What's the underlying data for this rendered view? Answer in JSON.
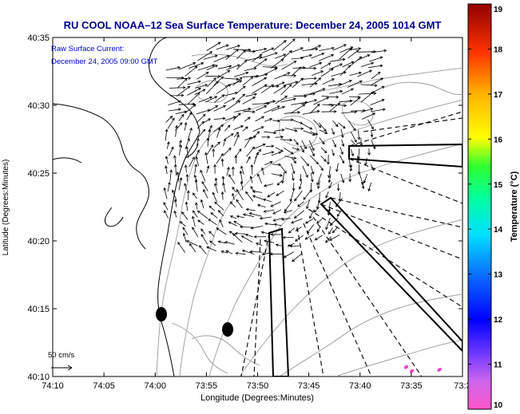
{
  "chart_data": {
    "type": "map",
    "title": "RU COOL   NOAA–12  Sea Surface Temperature:  December 24, 2005 1014 GMT",
    "annotation": {
      "line1": "Raw Surface Current:",
      "line2": "December 24, 2005 09:00 GMT"
    },
    "xlabel": "Longitude (Degrees:Minutes)",
    "ylabel": "Latitude (Degrees:Minutes)",
    "x_ticks": [
      "74:10",
      "74:05",
      "74:00",
      "73:55",
      "73:50",
      "73:45",
      "73:40",
      "73:35",
      "73:3"
    ],
    "y_ticks": [
      "40:35",
      "40:30",
      "40:25",
      "40:20",
      "40:15",
      "40:10"
    ],
    "xlim_deg": [
      -74.1667,
      -73.5
    ],
    "ylim_deg": [
      40.1667,
      40.5833
    ],
    "scale_label": "50 cm/s",
    "colorbar": {
      "label": "Temperature (°C)",
      "range": [
        10,
        19
      ],
      "ticks": [
        "19",
        "18",
        "17",
        "16",
        "15",
        "14",
        "13",
        "12",
        "11",
        "10"
      ]
    },
    "sst_points": [
      {
        "lon": -73.5917,
        "lat": 40.1783,
        "temp": 10.2
      },
      {
        "lon": -73.5825,
        "lat": 40.1733,
        "temp": 10.2
      },
      {
        "lon": -73.5375,
        "lat": 40.175,
        "temp": 10.2
      }
    ]
  },
  "colors": {
    "title": "#00008B",
    "annotation": "#0000CC",
    "coastline": "#000000",
    "bathymetry": "#9a9a9a",
    "arrows": "#000000"
  }
}
